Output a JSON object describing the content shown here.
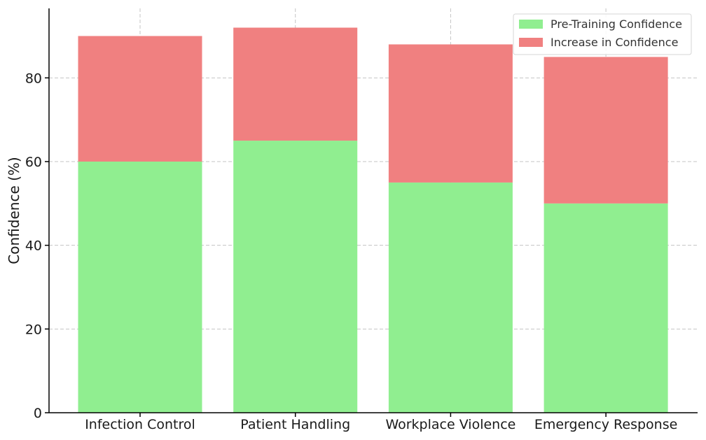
{
  "chart_data": {
    "type": "bar",
    "stacked": true,
    "title": "",
    "xlabel": "",
    "ylabel": "Confidence (%)",
    "categories": [
      "Infection Control",
      "Patient Handling",
      "Workplace Violence",
      "Emergency Response"
    ],
    "series": [
      {
        "name": "Pre-Training Confidence",
        "values": [
          60,
          65,
          55,
          50
        ],
        "color": "#90ee90"
      },
      {
        "name": "Increase in Confidence",
        "values": [
          30,
          27,
          33,
          35
        ],
        "color": "#f08080"
      }
    ],
    "ylim": [
      0,
      96.6
    ],
    "yticks": [
      0,
      20,
      40,
      60,
      80
    ],
    "grid": true,
    "legend_position": "top-right"
  }
}
